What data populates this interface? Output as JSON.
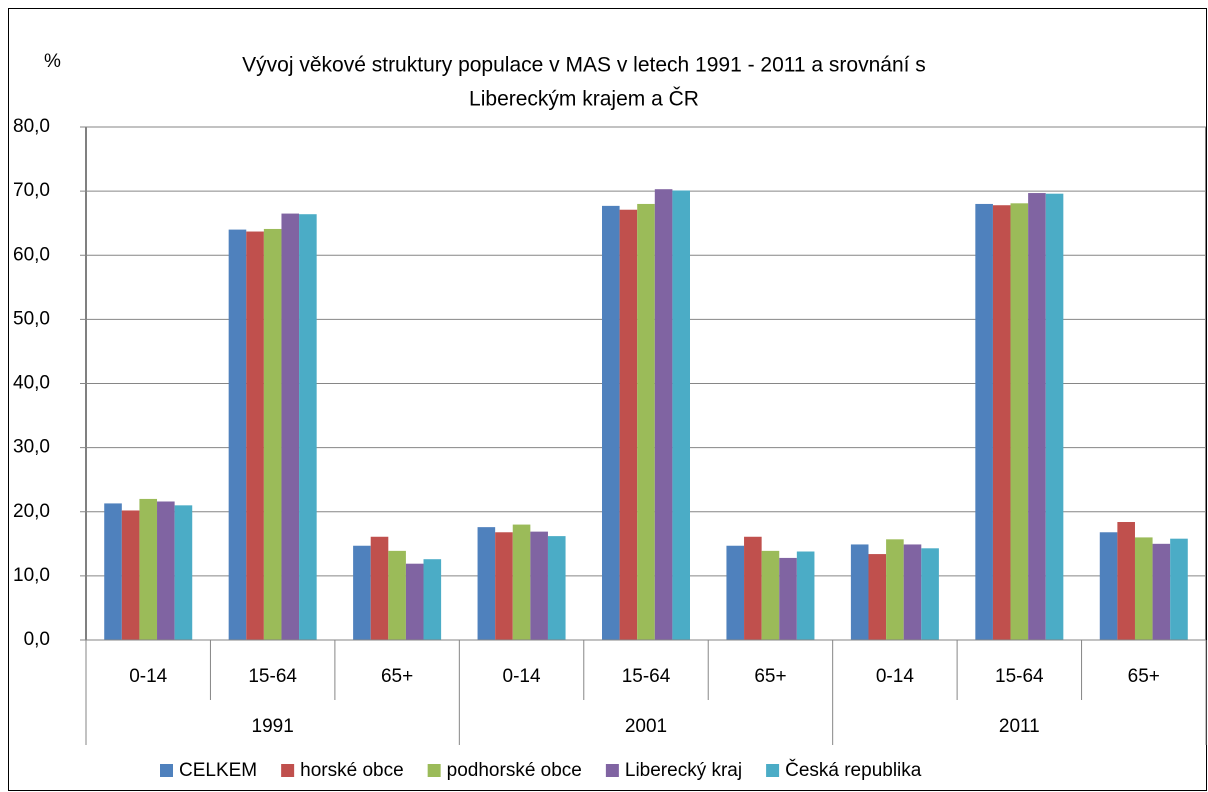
{
  "chart_data": {
    "type": "bar",
    "title": [
      "Vývoj věkové struktury populace v MAS v letech 1991 - 2011 a srovnání s",
      "Libereckým krajem a ČR"
    ],
    "ylabel": "%",
    "categories": [
      "0-14",
      "15-64",
      "65+",
      "0-14",
      "15-64",
      "65+",
      "0-14",
      "15-64",
      "65+"
    ],
    "category_groups": [
      "1991",
      "2001",
      "2011"
    ],
    "series": [
      {
        "name": "CELKEM",
        "color": "#4f81bd",
        "values": [
          21.3,
          64.0,
          14.7,
          17.6,
          67.7,
          14.7,
          14.9,
          68.0,
          16.8
        ]
      },
      {
        "name": "horské obce",
        "color": "#c0504d",
        "values": [
          20.2,
          63.7,
          16.1,
          16.8,
          67.1,
          16.1,
          13.4,
          67.8,
          18.4
        ]
      },
      {
        "name": "podhorské obce",
        "color": "#9bbb59",
        "values": [
          22.0,
          64.1,
          13.9,
          18.0,
          68.0,
          13.9,
          15.7,
          68.1,
          16.0
        ]
      },
      {
        "name": "Liberecký kraj",
        "color": "#8064a2",
        "values": [
          21.6,
          66.5,
          11.9,
          16.9,
          70.3,
          12.8,
          14.9,
          69.7,
          15.0
        ]
      },
      {
        "name": "Česká republika",
        "color": "#4bacc6",
        "values": [
          21.0,
          66.4,
          12.6,
          16.2,
          70.1,
          13.8,
          14.3,
          69.6,
          15.8
        ]
      }
    ],
    "ylim": [
      0,
      80
    ],
    "yticks": [
      {
        "value": 0,
        "label": "0,0"
      },
      {
        "value": 10,
        "label": "10,0"
      },
      {
        "value": 20,
        "label": "20,0"
      },
      {
        "value": 30,
        "label": "30,0"
      },
      {
        "value": 40,
        "label": "40,0"
      },
      {
        "value": 50,
        "label": "50,0"
      },
      {
        "value": 60,
        "label": "60,0"
      },
      {
        "value": 70,
        "label": "70,0"
      },
      {
        "value": 80,
        "label": "80,0"
      }
    ],
    "grid": true,
    "legend": "bottom"
  }
}
